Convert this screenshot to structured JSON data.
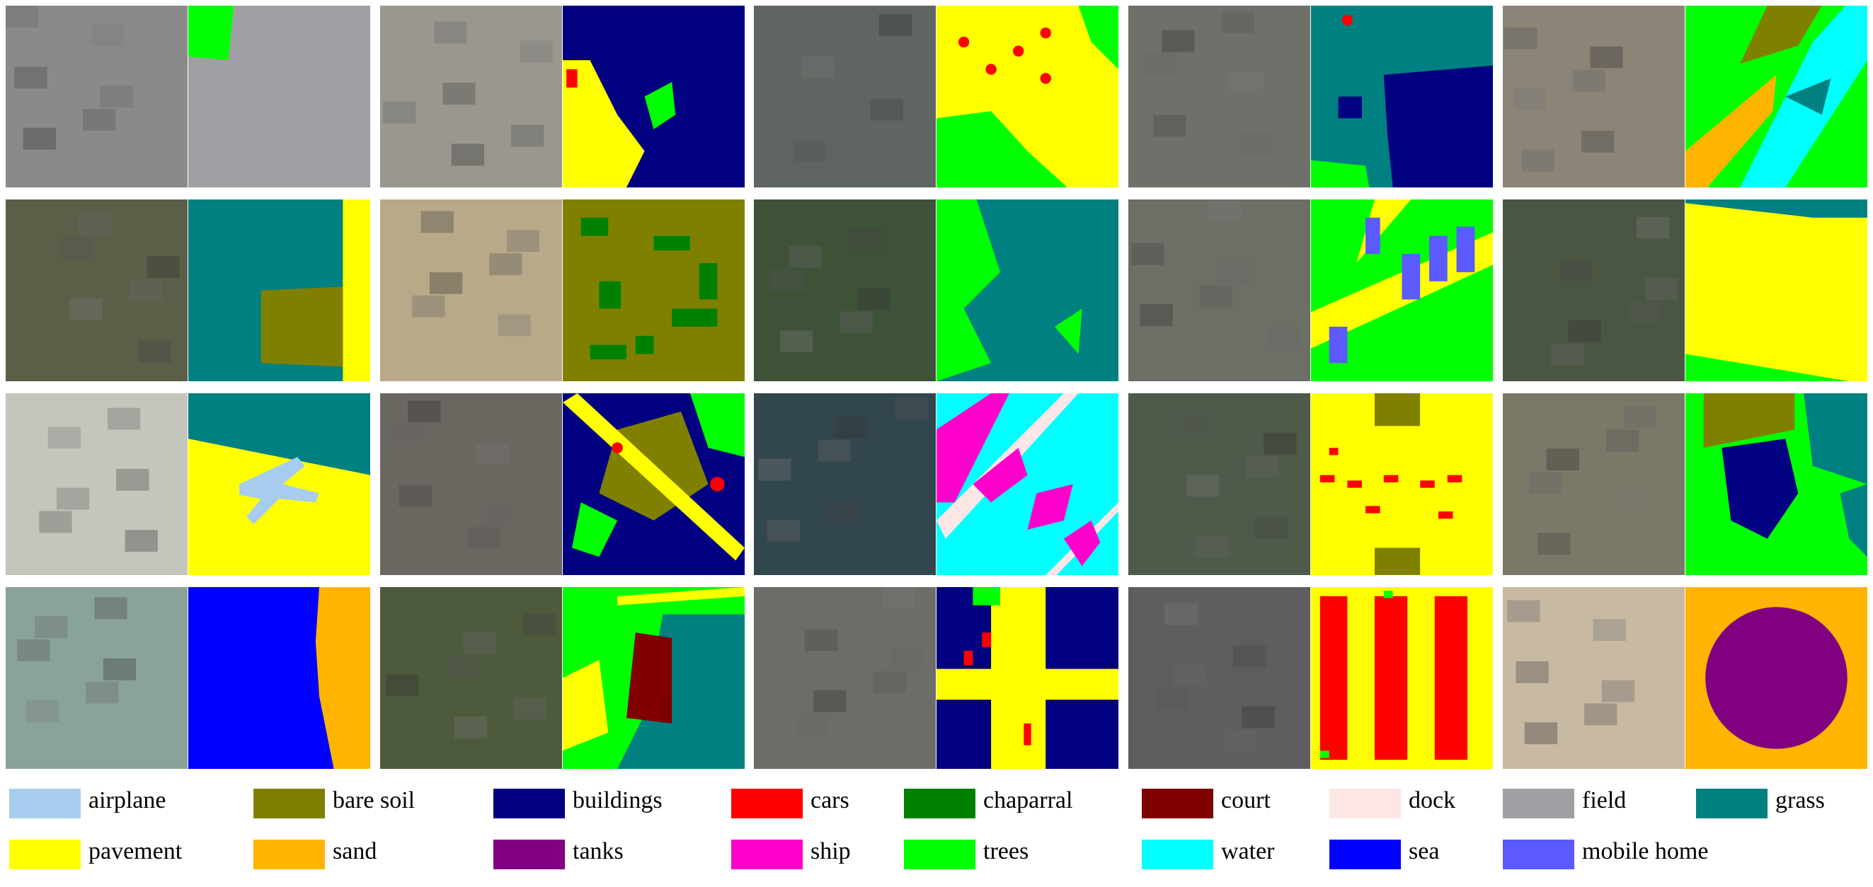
{
  "legend": {
    "items": [
      {
        "name": "airplane",
        "color": "#a6cdf0"
      },
      {
        "name": "bare soil",
        "color": "#808000"
      },
      {
        "name": "buildings",
        "color": "#000080"
      },
      {
        "name": "cars",
        "color": "#ff0000"
      },
      {
        "name": "chaparral",
        "color": "#008000"
      },
      {
        "name": "court",
        "color": "#800000"
      },
      {
        "name": "dock",
        "color": "#fde6e6"
      },
      {
        "name": "field",
        "color": "#a0a0a4"
      },
      {
        "name": "grass",
        "color": "#008080"
      },
      {
        "name": "pavement",
        "color": "#ffff00"
      },
      {
        "name": "sand",
        "color": "#ffb400"
      },
      {
        "name": "tanks",
        "color": "#800080"
      },
      {
        "name": "ship",
        "color": "#ff00cc"
      },
      {
        "name": "trees",
        "color": "#00ff00"
      },
      {
        "name": "water",
        "color": "#00ffff"
      },
      {
        "name": "sea",
        "color": "#0000ff"
      },
      {
        "name": "mobile home",
        "color": "#5a5aff"
      }
    ]
  }
}
